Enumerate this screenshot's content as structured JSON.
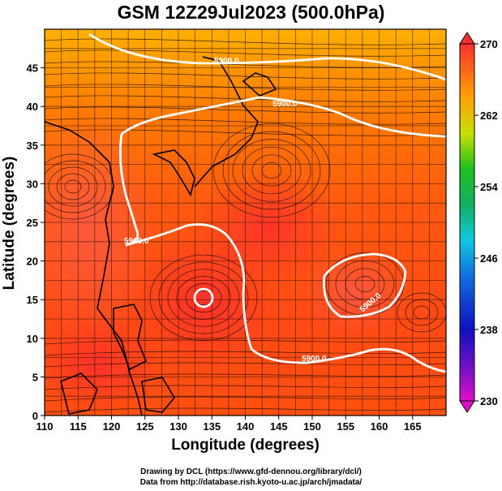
{
  "title": "GSM 12Z29Jul2023 (500.0hPa)",
  "xlabel": "Longitude (degrees)",
  "ylabel": "Latitude  (degrees)",
  "credit_line1": "Drawing by DCL (https://www.gfd-dennou.org/library/dcl/)",
  "credit_line2": "Data from http://database.rish.kyoto-u.ac.jp/arch/jmadata/",
  "colors": {
    "field_warm": "#ff6a00",
    "field_hot": "#ff3322",
    "field_north": "#ffb400",
    "contour": "#ffffff",
    "streamline": "#000000"
  },
  "chart_data": {
    "type": "heatmap",
    "title": "GSM 12Z29Jul2023 (500.0hPa)",
    "xlabel": "Longitude (degrees)",
    "ylabel": "Latitude  (degrees)",
    "xlim": [
      110,
      170
    ],
    "ylim": [
      0,
      50
    ],
    "grid": true,
    "x_ticks": [
      110,
      115,
      120,
      125,
      130,
      135,
      140,
      145,
      150,
      155,
      160,
      165
    ],
    "y_ticks": [
      0,
      5,
      10,
      15,
      20,
      25,
      30,
      35,
      40,
      45
    ],
    "colorbar": {
      "range": [
        230,
        270
      ],
      "tick_labels": [
        "270",
        "262",
        "254",
        "246",
        "238",
        "230"
      ],
      "tick_values": [
        270,
        262,
        254,
        246,
        238,
        230
      ]
    },
    "contours": [
      {
        "label": "5900.0"
      },
      {
        "label": "5900.0"
      },
      {
        "label": "5900.0"
      },
      {
        "label": "5900.0"
      },
      {
        "label": "5900.0"
      }
    ]
  }
}
